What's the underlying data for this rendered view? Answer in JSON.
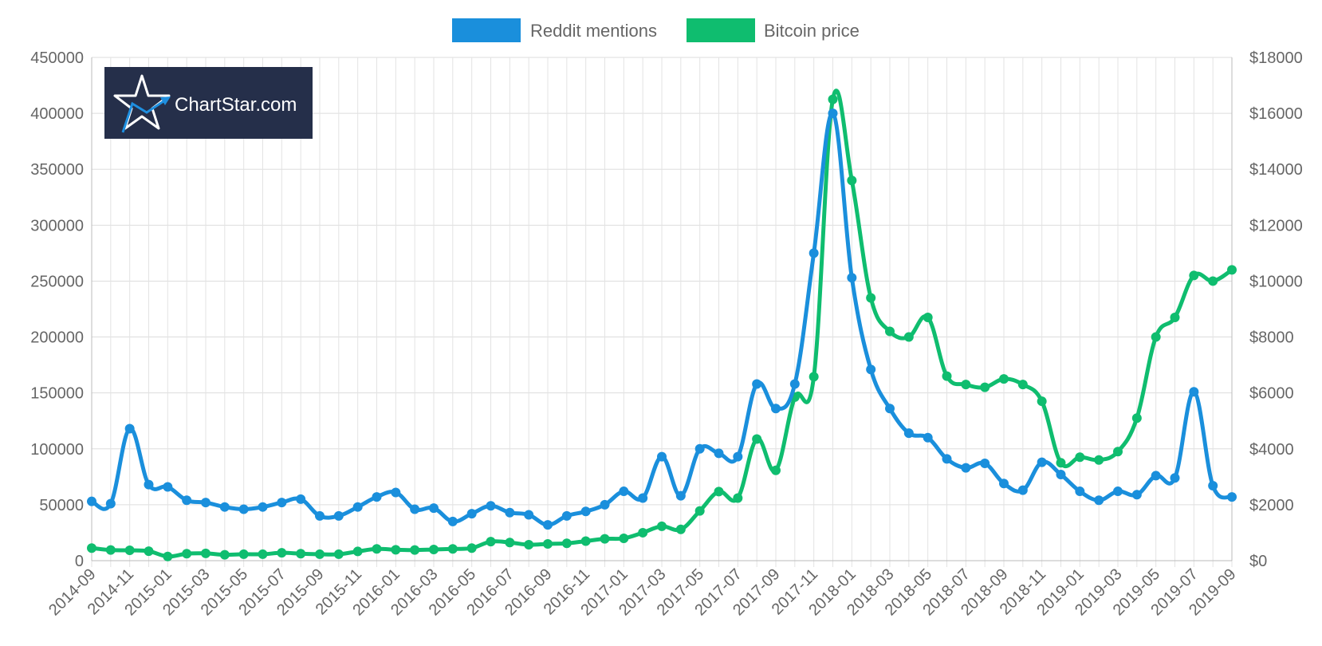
{
  "watermark": {
    "text": "ChartStar.com",
    "bg": "#252f4a",
    "accent": "#1e8fe0"
  },
  "chart_data": {
    "type": "line",
    "categories": [
      "2014-09",
      "2014-10",
      "2014-11",
      "2014-12",
      "2015-01",
      "2015-02",
      "2015-03",
      "2015-04",
      "2015-05",
      "2015-06",
      "2015-07",
      "2015-08",
      "2015-09",
      "2015-10",
      "2015-11",
      "2015-12",
      "2016-01",
      "2016-02",
      "2016-03",
      "2016-04",
      "2016-05",
      "2016-06",
      "2016-07",
      "2016-08",
      "2016-09",
      "2016-10",
      "2016-11",
      "2016-12",
      "2017-01",
      "2017-02",
      "2017-03",
      "2017-04",
      "2017-05",
      "2017-06",
      "2017-07",
      "2017-08",
      "2017-09",
      "2017-10",
      "2017-11",
      "2017-12",
      "2018-01",
      "2018-02",
      "2018-03",
      "2018-04",
      "2018-05",
      "2018-06",
      "2018-07",
      "2018-08",
      "2018-09",
      "2018-10",
      "2018-11",
      "2018-12",
      "2019-01",
      "2019-02",
      "2019-03",
      "2019-04",
      "2019-05",
      "2019-06",
      "2019-07",
      "2019-08",
      "2019-09"
    ],
    "x_tick_labels": [
      "2014-09",
      "2014-11",
      "2015-01",
      "2015-03",
      "2015-05",
      "2015-07",
      "2015-09",
      "2015-11",
      "2016-01",
      "2016-03",
      "2016-05",
      "2016-07",
      "2016-09",
      "2016-11",
      "2017-01",
      "2017-03",
      "2017-05",
      "2017-07",
      "2017-09",
      "2017-11",
      "2018-01",
      "2018-03",
      "2018-05",
      "2018-07",
      "2018-09",
      "2018-11",
      "2019-01",
      "2019-03",
      "2019-05",
      "2019-07",
      "2019-09"
    ],
    "y_left": {
      "ticks": [
        "0",
        "50000",
        "100000",
        "150000",
        "200000",
        "250000",
        "300000",
        "350000",
        "400000",
        "450000"
      ],
      "lim": [
        0,
        450000
      ]
    },
    "y_right": {
      "ticks": [
        "$0",
        "$2000",
        "$4000",
        "$6000",
        "$8000",
        "$10000",
        "$12000",
        "$14000",
        "$16000",
        "$18000"
      ],
      "lim": [
        0,
        18000
      ]
    },
    "grid": true,
    "legend_position": "top-center",
    "series": [
      {
        "name": "Reddit mentions",
        "axis": "left",
        "color": "#1a8fdc",
        "values": [
          53000,
          51000,
          118000,
          68000,
          66000,
          54000,
          52000,
          48000,
          46000,
          48000,
          52000,
          55000,
          40000,
          40000,
          48000,
          57000,
          61000,
          46000,
          47000,
          35000,
          42000,
          49000,
          43000,
          41000,
          32000,
          40000,
          44000,
          50000,
          62000,
          56000,
          93000,
          58000,
          100000,
          96000,
          93000,
          158000,
          136000,
          158000,
          275000,
          400000,
          253000,
          171000,
          136000,
          114000,
          110000,
          91000,
          83000,
          87000,
          69000,
          63000,
          88000,
          77000,
          62000,
          54000,
          62000,
          59000,
          76000,
          74000,
          151000,
          67000,
          57000
        ]
      },
      {
        "name": "Bitcoin price",
        "axis": "right",
        "color": "#0fbd6f",
        "values": [
          450,
          380,
          370,
          340,
          150,
          250,
          260,
          210,
          230,
          230,
          280,
          250,
          230,
          230,
          330,
          420,
          390,
          380,
          400,
          420,
          450,
          680,
          650,
          570,
          600,
          620,
          700,
          780,
          800,
          1000,
          1230,
          1120,
          1780,
          2470,
          2240,
          4350,
          3230,
          5850,
          6580,
          16500,
          13600,
          9400,
          8200,
          8000,
          8700,
          6600,
          6300,
          6200,
          6500,
          6300,
          5700,
          3500,
          3700,
          3600,
          3900,
          5100,
          8000,
          8700,
          10200,
          10000,
          10400
        ]
      }
    ]
  }
}
